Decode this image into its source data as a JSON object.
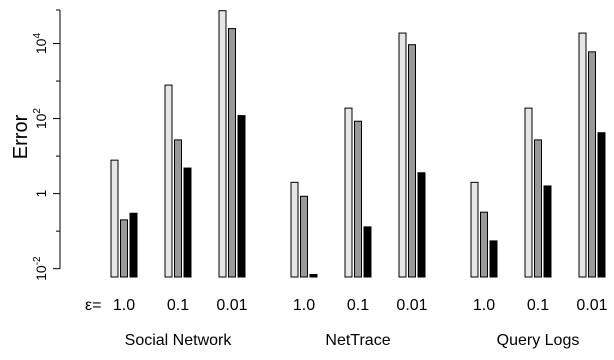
{
  "chart_data": {
    "type": "bar",
    "title": "",
    "ylabel": "Error",
    "xlabel": "",
    "yscale": "log",
    "ylim": [
      0.006,
      100000
    ],
    "yticks": [
      {
        "value": 0.01,
        "base": "10",
        "exp": "-2"
      },
      {
        "value": 1,
        "base": "1",
        "exp": ""
      },
      {
        "value": 100,
        "base": "10",
        "exp": "2"
      },
      {
        "value": 10000,
        "base": "10",
        "exp": "4"
      }
    ],
    "epsilon_prefix": "ε=",
    "groups": [
      {
        "name": "Social Network",
        "subgroups": [
          {
            "label": "1.0",
            "values": [
              7.8,
              0.2,
              0.3
            ]
          },
          {
            "label": "0.1",
            "values": [
              780,
              27,
              4.8
            ]
          },
          {
            "label": "0.01",
            "values": [
              75000,
              25000,
              120
            ]
          }
        ]
      },
      {
        "name": "NetTrace",
        "subgroups": [
          {
            "label": "1.0",
            "values": [
              2,
              0.85,
              0.007
            ]
          },
          {
            "label": "0.1",
            "values": [
              190,
              85,
              0.13
            ]
          },
          {
            "label": "0.01",
            "values": [
              19000,
              9300,
              3.6
            ]
          }
        ]
      },
      {
        "name": "Query Logs",
        "subgroups": [
          {
            "label": "1.0",
            "values": [
              2,
              0.32,
              0.055
            ]
          },
          {
            "label": "0.1",
            "values": [
              190,
              27,
              1.6
            ]
          },
          {
            "label": "0.01",
            "values": [
              19000,
              6000,
              42
            ]
          }
        ]
      }
    ],
    "bar_colors": [
      "#e6e6e6",
      "#999999",
      "#000000"
    ]
  }
}
